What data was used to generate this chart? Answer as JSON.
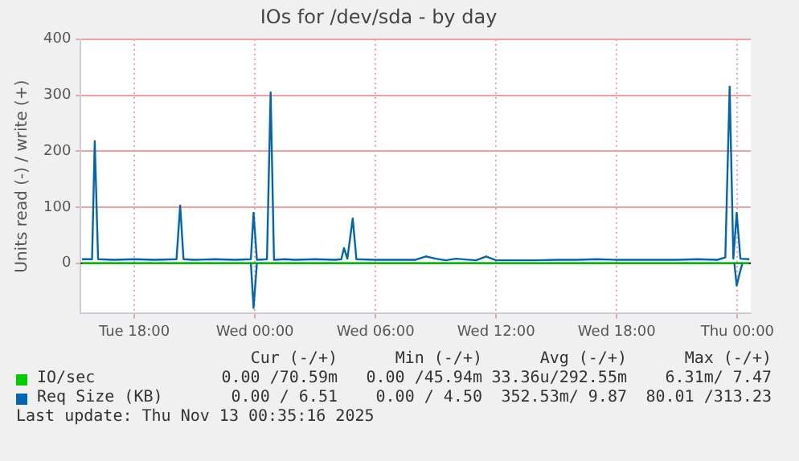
{
  "chart_data": {
    "type": "line",
    "title": "IOs for /dev/sda - by day",
    "ylabel": "Units read (-) / write (+)",
    "xlim": [
      "2025-11-11T15:20",
      "2025-11-13T00:40"
    ],
    "xticks": [
      {
        "value": "2025-11-11T18:00",
        "label": "Tue 18:00"
      },
      {
        "value": "2025-11-12T00:00",
        "label": "Wed 00:00"
      },
      {
        "value": "2025-11-12T06:00",
        "label": "Wed 06:00"
      },
      {
        "value": "2025-11-12T12:00",
        "label": "Wed 12:00"
      },
      {
        "value": "2025-11-12T18:00",
        "label": "Wed 18:00"
      },
      {
        "value": "2025-11-13T00:00",
        "label": "Thu 00:00"
      }
    ],
    "ylim": [
      -90,
      400
    ],
    "yticks": [
      0,
      100,
      200,
      300,
      400
    ],
    "grid": true,
    "legend": "bottom",
    "series": [
      {
        "name": "IO/sec",
        "color": "#00cc00",
        "x": [
          "2025-11-11T15:24",
          "2025-11-11T20:00",
          "2025-11-12T00:00",
          "2025-11-12T06:00",
          "2025-11-12T12:00",
          "2025-11-12T18:00",
          "2025-11-13T00:36"
        ],
        "values": [
          0,
          0,
          0,
          0,
          0,
          0,
          0
        ]
      },
      {
        "name": "Req Size (KB)",
        "color": "#0066b3",
        "x": [
          "2025-11-11T15:24",
          "2025-11-11T15:54",
          "2025-11-11T16:02",
          "2025-11-11T16:12",
          "2025-11-11T17:00",
          "2025-11-11T18:00",
          "2025-11-11T19:00",
          "2025-11-11T20:06",
          "2025-11-11T20:17",
          "2025-11-11T20:27",
          "2025-11-11T21:00",
          "2025-11-11T22:00",
          "2025-11-11T23:00",
          "2025-11-11T23:48",
          "2025-11-11T23:56",
          "2025-11-12T00:06",
          "2025-11-12T00:36",
          "2025-11-12T00:47",
          "2025-11-12T00:57",
          "2025-11-12T01:30",
          "2025-11-12T02:00",
          "2025-11-12T03:00",
          "2025-11-12T04:00",
          "2025-11-12T04:18",
          "2025-11-12T04:26",
          "2025-11-12T04:36",
          "2025-11-12T04:52",
          "2025-11-12T05:03",
          "2025-11-12T06:00",
          "2025-11-12T07:00",
          "2025-11-12T08:00",
          "2025-11-12T08:30",
          "2025-11-12T09:00",
          "2025-11-12T09:30",
          "2025-11-12T10:00",
          "2025-11-12T11:00",
          "2025-11-12T11:30",
          "2025-11-12T12:00",
          "2025-11-12T13:00",
          "2025-11-12T14:00",
          "2025-11-12T15:00",
          "2025-11-12T16:00",
          "2025-11-12T17:00",
          "2025-11-12T18:00",
          "2025-11-12T19:00",
          "2025-11-12T20:00",
          "2025-11-12T21:00",
          "2025-11-12T22:00",
          "2025-11-12T23:00",
          "2025-11-12T23:24",
          "2025-11-12T23:37",
          "2025-11-12T23:48",
          "2025-11-12T23:58",
          "2025-11-13T00:09",
          "2025-11-13T00:36"
        ],
        "values": [
          7,
          7,
          218,
          7,
          6,
          7,
          6,
          7,
          103,
          7,
          6,
          7,
          6,
          7,
          90,
          6,
          7,
          305,
          6,
          7,
          6,
          7,
          6,
          7,
          27,
          8,
          80,
          7,
          6,
          6,
          6,
          12,
          8,
          5,
          8,
          5,
          12,
          5,
          5,
          5,
          6,
          6,
          7,
          6,
          6,
          6,
          6,
          7,
          6,
          10,
          315,
          8,
          90,
          8,
          7
        ]
      },
      {
        "color": "#0066b3",
        "x": [
          "2025-11-11T23:48",
          "2025-11-11T23:56",
          "2025-11-12T00:06"
        ],
        "values": [
          0,
          -80,
          0
        ]
      },
      {
        "color": "#0066b3",
        "x": [
          "2025-11-12T23:51",
          "2025-11-12T23:58",
          "2025-11-13T00:06",
          "2025-11-13T00:15"
        ],
        "values": [
          0,
          -40,
          -20,
          0
        ]
      }
    ],
    "annotations": [
      "Cur (-/+)",
      "Min (-/+)",
      "Avg (-/+)",
      "Max (-/+)",
      "0.00 /70.59m",
      "0.00 /45.94m",
      "33.36u/292.55m",
      "6.31m/ 7.47",
      "0.00 / 6.51",
      "0.00 / 4.50",
      "352.53m/ 9.87",
      "80.01 /313.23",
      "Last update: Thu Nov 13 00:35:16 2025"
    ]
  }
}
